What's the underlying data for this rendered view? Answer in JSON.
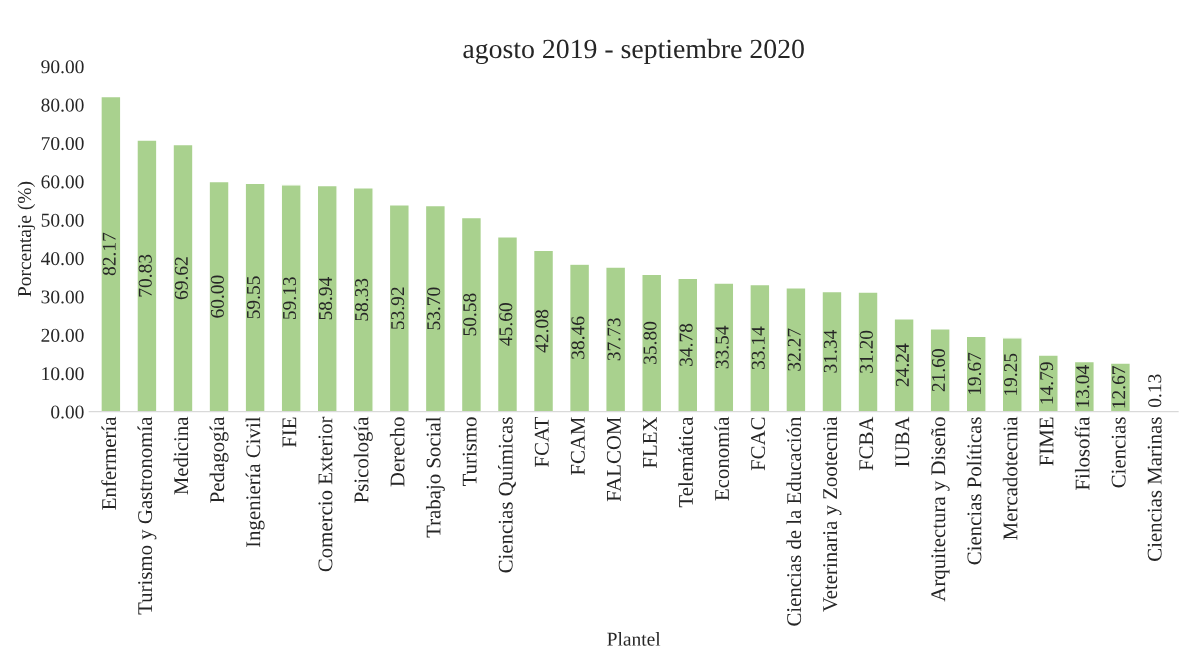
{
  "chart_data": {
    "type": "bar",
    "title": "agosto 2019 - septiembre 2020",
    "xlabel": "Plantel",
    "ylabel": "Porcentaje (%)",
    "categories": [
      "Enfermería",
      "Turismo y Gastronomía",
      "Medicina",
      "Pedagogía",
      "Ingeniería Civil",
      "FIE",
      "Comercio Exterior",
      "Psicología",
      "Derecho",
      "Trabajo Social",
      "Turismo",
      "Ciencias Químicas",
      "FCAT",
      "FCAM",
      "FALCOM",
      "FLEX",
      "Telemática",
      "Economía",
      "FCAC",
      "Ciencias de la Educación",
      "Veterinaria y Zootecnia",
      "FCBA",
      "IUBA",
      "Arquitectura y Diseño",
      "Ciencias Políticas",
      "Mercadotecnia",
      "FIME",
      "Filosofía",
      "Ciencias",
      "Ciencias Marinas"
    ],
    "values": [
      82.17,
      70.83,
      69.62,
      60.0,
      59.55,
      59.13,
      58.94,
      58.33,
      53.92,
      53.7,
      50.58,
      45.6,
      42.08,
      38.46,
      37.73,
      35.8,
      34.78,
      33.54,
      33.14,
      32.27,
      31.34,
      31.2,
      24.24,
      21.6,
      19.67,
      19.25,
      14.79,
      13.04,
      12.67,
      0.13
    ],
    "value_labels": [
      "82.17",
      "70.83",
      "69.62",
      "60.00",
      "59.55",
      "59.13",
      "58.94",
      "58.33",
      "53.92",
      "53.70",
      "50.58",
      "45.60",
      "42.08",
      "38.46",
      "37.73",
      "35.80",
      "34.78",
      "33.54",
      "33.14",
      "32.27",
      "31.34",
      "31.20",
      "24.24",
      "21.60",
      "19.67",
      "19.25",
      "14.79",
      "13.04",
      "12.67",
      "0.13"
    ],
    "color": "#a9d18e",
    "ylim": [
      0,
      90
    ],
    "yticks": [
      {
        "value": 0,
        "label": "0.00"
      },
      {
        "value": 10,
        "label": "10.00"
      },
      {
        "value": 20,
        "label": "20.00"
      },
      {
        "value": 30,
        "label": "30.00"
      },
      {
        "value": 40,
        "label": "40.00"
      },
      {
        "value": 50,
        "label": "50.00"
      },
      {
        "value": 60,
        "label": "60.00"
      },
      {
        "value": 70,
        "label": "70.00"
      },
      {
        "value": 80,
        "label": "80.00"
      },
      {
        "value": 90,
        "label": "90.00"
      }
    ],
    "grid": false,
    "legend": false
  }
}
